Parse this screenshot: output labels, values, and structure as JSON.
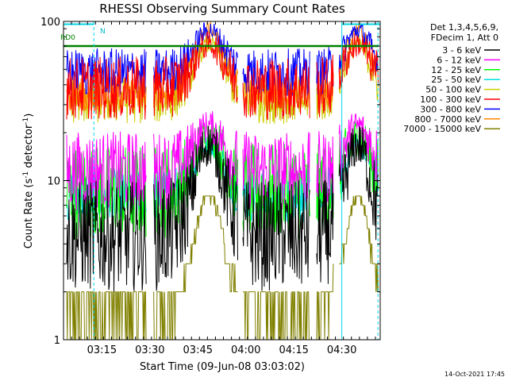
{
  "chart_data": {
    "type": "line",
    "title": "RHESSI Observing Summary Count Rates",
    "xlabel": "Start Time (09-Jun-08 03:03:02)",
    "ylabel_main": "Count Rate (s",
    "ylabel_sup1": "-1",
    "ylabel_mid": " detector",
    "ylabel_sup2": "-1",
    "ylabel_end": ")",
    "y_scale": "log",
    "ylim": [
      1,
      100
    ],
    "y_ticks": [
      {
        "value": 1,
        "label": "1"
      },
      {
        "value": 10,
        "label": "10"
      },
      {
        "value": 100,
        "label": "100"
      }
    ],
    "xlim_minutes_after_start": [
      0,
      99
    ],
    "x_ticks": [
      {
        "minutes": 12,
        "label": "03:15"
      },
      {
        "minutes": 27,
        "label": "03:30"
      },
      {
        "minutes": 42,
        "label": "03:45"
      },
      {
        "minutes": 57,
        "label": "04:00"
      },
      {
        "minutes": 72,
        "label": "04:15"
      },
      {
        "minutes": 87,
        "label": "04:30"
      }
    ],
    "legend_header": [
      "Det 1,3,4,5,6,9,",
      "FDecim 1, Att 0"
    ],
    "legend_placement": "right",
    "flags": [
      {
        "label": "RD0",
        "color": "#008000"
      },
      {
        "label": "N",
        "color": "#00d8e8"
      }
    ],
    "timestamp": "14-Oct-2021 17:45",
    "series": [
      {
        "name": "3 - 6 keV",
        "color": "#000000",
        "low": 4.5,
        "high": 17,
        "jitter": 0.7
      },
      {
        "name": "6 - 12 keV",
        "color": "#ff00ff",
        "low": 11.5,
        "high": 22,
        "jitter": 0.5
      },
      {
        "name": "12 - 25 keV",
        "color": "#00ff00",
        "low": 8.5,
        "high": 19,
        "jitter": 0.6
      },
      {
        "name": "25 - 50 keV",
        "color": "#00e0e0",
        "low": 8.0,
        "high": 17,
        "jitter": 0.35
      },
      {
        "name": "50 - 100 keV",
        "color": "#cccc00",
        "low": 32,
        "high": 72,
        "jitter": 0.3
      },
      {
        "name": "100 - 300 keV",
        "color": "#ff0000",
        "low": 38,
        "high": 72,
        "jitter": 0.4
      },
      {
        "name": "300 - 800 keV",
        "color": "#0000ff",
        "low": 48,
        "high": 88,
        "jitter": 0.3
      },
      {
        "name": "800 - 7000 keV",
        "color": "#ff8800",
        "low": 35,
        "high": 90,
        "jitter": 0.22
      },
      {
        "name": "7000 - 15000 keV",
        "color": "#808000",
        "low": 1.6,
        "high": 8,
        "jitter": 0.0
      }
    ]
  }
}
